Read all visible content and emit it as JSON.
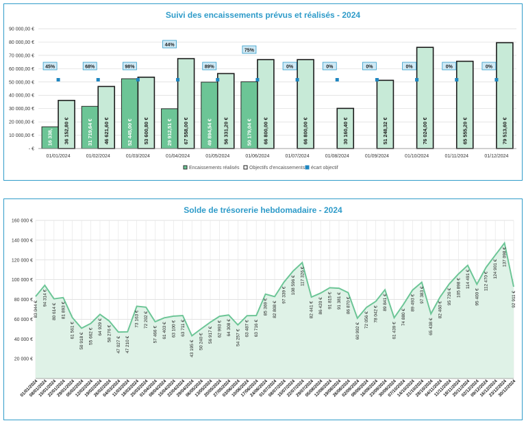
{
  "chart_data": [
    {
      "type": "bar",
      "title": "Suivi des encaissements prévus et réalisés - 2024",
      "categories": [
        "01/01/2024",
        "01/02/2024",
        "01/03/2024",
        "01/04/2024",
        "01/05/2024",
        "01/06/2024",
        "01/07/2024",
        "01/08/2024",
        "01/09/2024",
        "01/10/2024",
        "01/11/2024",
        "01/12/2024"
      ],
      "series": [
        {
          "name": "Encaissements réalisés",
          "values": [
            16338,
            31719.64,
            52445,
            29912.51,
            49894.54,
            50179.04,
            0,
            0,
            0,
            0,
            0,
            0
          ],
          "labels": [
            "16 338,",
            "31 719,64 €",
            "52 445,00 €",
            "29 912,51 €",
            "49 894,54 €",
            "50 179,04 €",
            "",
            "",
            "",
            "",
            "",
            ""
          ],
          "color": "#6cc596"
        },
        {
          "name": "Objectifs d'encaissements",
          "values": [
            36152.8,
            46621.6,
            53600.8,
            67558,
            56331.2,
            66800,
            66800,
            30160.4,
            51248.32,
            76024,
            65555.2,
            79513.6
          ],
          "labels": [
            "36 152,80 €",
            "46 621,60 €",
            "53 600,80 €",
            "67 558,00 €",
            "56 331,20 €",
            "66 800,00 €",
            "66 800,00 €",
            "30 160,40 €",
            "51 248,32 €",
            "76 024,00 €",
            "65 555,20 €",
            "79 513,60 €"
          ],
          "color": "#c7ead7"
        },
        {
          "name": "écart objectif",
          "values": [
            45,
            68,
            98,
            44,
            89,
            75,
            0,
            0,
            0,
            0,
            0,
            0
          ],
          "labels": [
            "45%",
            "68%",
            "98%",
            "44%",
            "89%",
            "75%",
            "0%",
            "0%",
            "0%",
            "0%",
            "0%",
            "0%"
          ],
          "color": "#1f86c0"
        }
      ],
      "y_ticks": [
        "90 000,00 €",
        "80 000,00 €",
        "70 000,00 €",
        "60 000,00 €",
        "50 000,00 €",
        "40 000,00 €",
        "30 000,00 €",
        "20 000,00 €",
        "10 000,00 €",
        "- €"
      ],
      "ylim": [
        0,
        90000
      ],
      "grid": true,
      "legend": "bottom"
    },
    {
      "type": "area",
      "title": "Solde de trésorerie hebdomadaire - 2024",
      "x": [
        "01/01/2024",
        "08/01/2024",
        "15/01/2024",
        "22/01/2024",
        "29/01/2024",
        "05/02/2024",
        "12/02/2024",
        "19/02/2024",
        "26/02/2024",
        "04/03/2024",
        "11/03/2024",
        "18/03/2024",
        "25/03/2024",
        "01/04/2024",
        "08/04/2024",
        "15/04/2024",
        "22/04/2024",
        "29/04/2024",
        "06/05/2024",
        "13/05/2024",
        "20/05/2024",
        "27/05/2024",
        "03/06/2024",
        "10/06/2024",
        "17/06/2024",
        "24/06/2024",
        "01/07/2024",
        "08/07/2024",
        "15/07/2024",
        "22/07/2024",
        "29/07/2024",
        "05/08/2024",
        "12/08/2024",
        "19/08/2024",
        "26/08/2024",
        "02/09/2024",
        "09/09/2024",
        "16/09/2024",
        "23/09/2024",
        "30/09/2024",
        "07/10/2024",
        "14/10/2024",
        "21/10/2024",
        "28/10/2024",
        "04/11/2024",
        "11/11/2024",
        "18/11/2024",
        "25/11/2024",
        "02/12/2024",
        "09/12/2024",
        "16/12/2024",
        "23/12/2024",
        "30/12/2024"
      ],
      "values": [
        83044,
        94314,
        80614,
        81893,
        61561,
        50918,
        55662,
        64929,
        58276,
        47027,
        47210,
        73163,
        72202,
        57466,
        61403,
        63100,
        63711,
        43195,
        50240,
        56917,
        62993,
        64308,
        54257,
        63487,
        63716,
        85369,
        82808,
        97339,
        108596,
        117326,
        82441,
        86420,
        91815,
        91381,
        86870,
        60992,
        72056,
        78042,
        89841,
        61439,
        74880,
        89493,
        97383,
        65438,
        82460,
        95726,
        105898,
        114491,
        95400,
        112470,
        124901,
        137098,
        92911
      ],
      "labels": [
        "83 044 €",
        "94 314 €",
        "80 614 €",
        "81 893 €",
        "61 561 €",
        "50 918 €",
        "55 662 €",
        "64 929 €",
        "58 276 €",
        "47 027 €",
        "47 210 €",
        "73 163 €",
        "72 202 €",
        "57 466 €",
        "61 403 €",
        "63 100 €",
        "63 711 €",
        "43 195 €",
        "50 240 €",
        "56 917 €",
        "62 993 €",
        "64 308 €",
        "54 257 €",
        "63 487 €",
        "63 716 €",
        "85 369 €",
        "82 808 €",
        "97 339 €",
        "108 596 €",
        "117 326 €",
        "82 441 €",
        "86 420 €",
        "91 815 €",
        "91 381 €",
        "86 870 €",
        "60 992 €",
        "72 056 €",
        "78 042 €",
        "89 841 €",
        "61 439 €",
        "74 880 €",
        "89 493 €",
        "97 383 €",
        "65 438 €",
        "82 460 €",
        "95 726 €",
        "105 898 €",
        "114 491 €",
        "95 400 €",
        "112 470 €",
        "124 901 €",
        "137 098 €",
        "92 911 €"
      ],
      "y_ticks": [
        "160 000 €",
        "140 000 €",
        "120 000 €",
        "100 000 €",
        "80 000 €",
        "60 000 €",
        "40 000 €",
        "20 000 €"
      ],
      "ylim": [
        0,
        160000
      ],
      "grid": true,
      "line_color": "#6cc596",
      "fill_color": "#dff2e7"
    }
  ]
}
